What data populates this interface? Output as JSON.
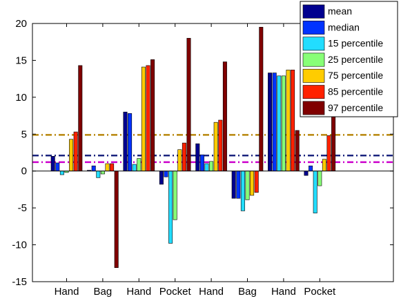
{
  "chart_data": {
    "type": "bar",
    "categories": [
      "Hand",
      "Bag",
      "Hand",
      "Pocket",
      "Hand",
      "Bag",
      "Hand",
      "Pocket"
    ],
    "ylim": [
      -15,
      20
    ],
    "yticks": [
      -15,
      -10,
      -5,
      0,
      5,
      10,
      15,
      20
    ],
    "grid": false,
    "legend_position": "top-right",
    "series": [
      {
        "name": "mean",
        "color": "#00008f",
        "values": [
          2.0,
          0.1,
          8.0,
          -1.8,
          3.7,
          -3.7,
          13.3,
          -0.6
        ]
      },
      {
        "name": "median",
        "color": "#0033ff",
        "values": [
          1.1,
          0.7,
          7.8,
          -0.8,
          2.2,
          -3.7,
          13.3,
          0.7
        ]
      },
      {
        "name": "15 percentile",
        "color": "#22ddff",
        "values": [
          -0.5,
          -0.9,
          0.9,
          -9.8,
          1.0,
          -5.4,
          12.9,
          -5.7
        ]
      },
      {
        "name": "25 percentile",
        "color": "#88ff77",
        "values": [
          -0.2,
          -0.4,
          1.7,
          -6.6,
          1.3,
          -3.9,
          12.9,
          -2.0
        ]
      },
      {
        "name": "75 percentile",
        "color": "#ffcc00",
        "values": [
          4.3,
          1.0,
          14.1,
          2.9,
          6.6,
          -3.3,
          13.7,
          1.6
        ]
      },
      {
        "name": "85 percentile",
        "color": "#ff2200",
        "values": [
          5.3,
          1.0,
          14.3,
          3.8,
          6.9,
          -2.9,
          13.7,
          4.8
        ]
      },
      {
        "name": "97 percentile",
        "color": "#800000",
        "values": [
          14.3,
          -13.1,
          15.1,
          18.0,
          14.8,
          19.5,
          5.5,
          7.5
        ]
      }
    ],
    "reference_lines": [
      {
        "value": 4.9,
        "color": "#b8860b"
      },
      {
        "value": 2.1,
        "color": "#1a237e"
      },
      {
        "value": 1.2,
        "color": "#cc00cc"
      }
    ]
  }
}
